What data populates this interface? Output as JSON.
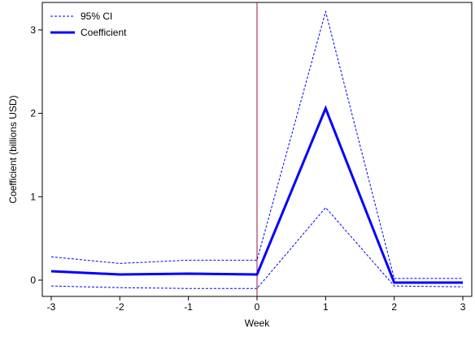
{
  "chart_data": {
    "type": "line",
    "x_label": "Week",
    "y_label": "Coefficient (billions USD)",
    "x": [
      -3,
      -2,
      -1,
      0,
      1,
      2,
      3
    ],
    "series": [
      {
        "name": "95% CI",
        "color": "#0000ff",
        "style": "dashed",
        "upper": [
          0.28,
          0.2,
          0.24,
          0.24,
          3.22,
          0.02,
          0.02
        ],
        "lower": [
          -0.07,
          -0.09,
          -0.1,
          -0.1,
          0.87,
          -0.07,
          -0.08
        ]
      },
      {
        "name": "Coefficient",
        "color": "#0000ff",
        "style": "solid",
        "values": [
          0.107,
          0.068,
          0.078,
          0.068,
          2.06,
          -0.03,
          -0.03
        ]
      }
    ],
    "vline": {
      "x": 0,
      "color": "#a0103c"
    },
    "xlim": [
      -3.13,
      3.13
    ],
    "ylim": [
      -0.195,
      3.33
    ],
    "xticks": [
      -3,
      -2,
      -1,
      0,
      1,
      2,
      3
    ],
    "yticks": [
      0,
      1,
      2,
      3
    ],
    "grid": false,
    "legend": "top-left"
  }
}
